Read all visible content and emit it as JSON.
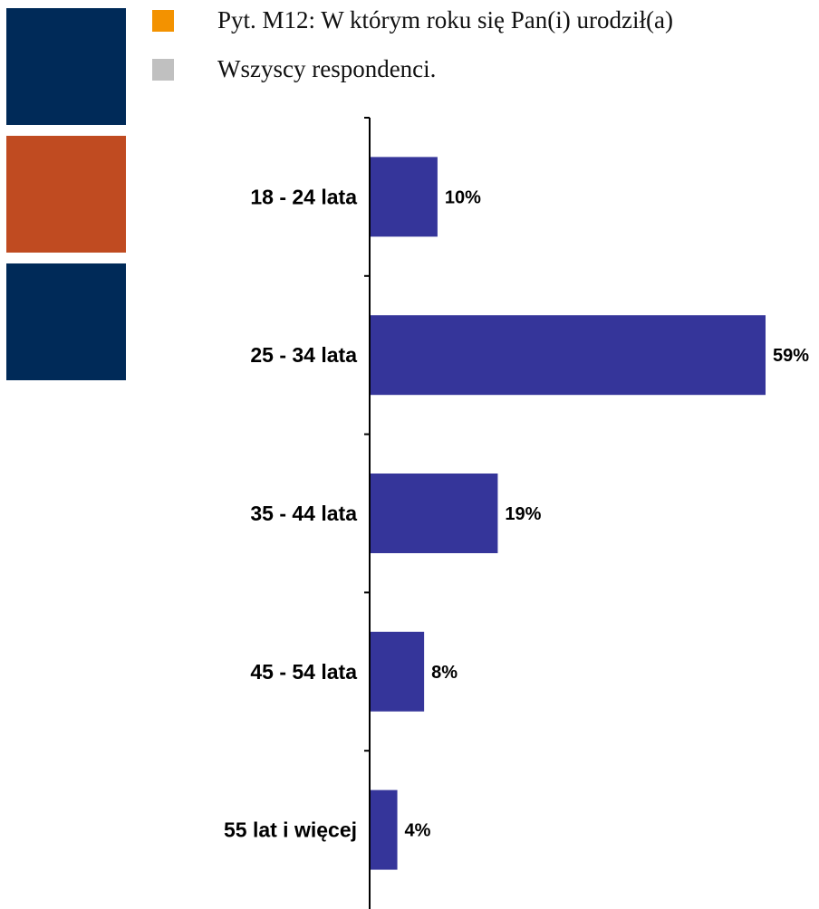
{
  "decor": {
    "blocks": [
      {
        "name": "navy-block-top",
        "color": "#002a58"
      },
      {
        "name": "orange-block",
        "color": "#c04b21"
      },
      {
        "name": "navy-block-bottom",
        "color": "#002a58"
      }
    ]
  },
  "legend": [
    {
      "label": "Pyt. M12: W którym roku się Pan(i) urodził(a)",
      "color": "#f39200"
    },
    {
      "label": "Wszyscy respondenci.",
      "color": "#c0c0c0"
    }
  ],
  "chart_data": {
    "type": "bar",
    "orientation": "horizontal",
    "categories": [
      "18 - 24 lata",
      "25 - 34 lata",
      "35 - 44 lata",
      "45 - 54 lata",
      "55 lat i więcej"
    ],
    "values": [
      10,
      59,
      19,
      8,
      4
    ],
    "value_labels": [
      "10%",
      "59%",
      "19%",
      "8%",
      "4%"
    ],
    "unit": "%",
    "xlim": [
      0,
      60
    ],
    "bar_color": "#35359a",
    "axis_color": "#000000",
    "grid": false
  }
}
